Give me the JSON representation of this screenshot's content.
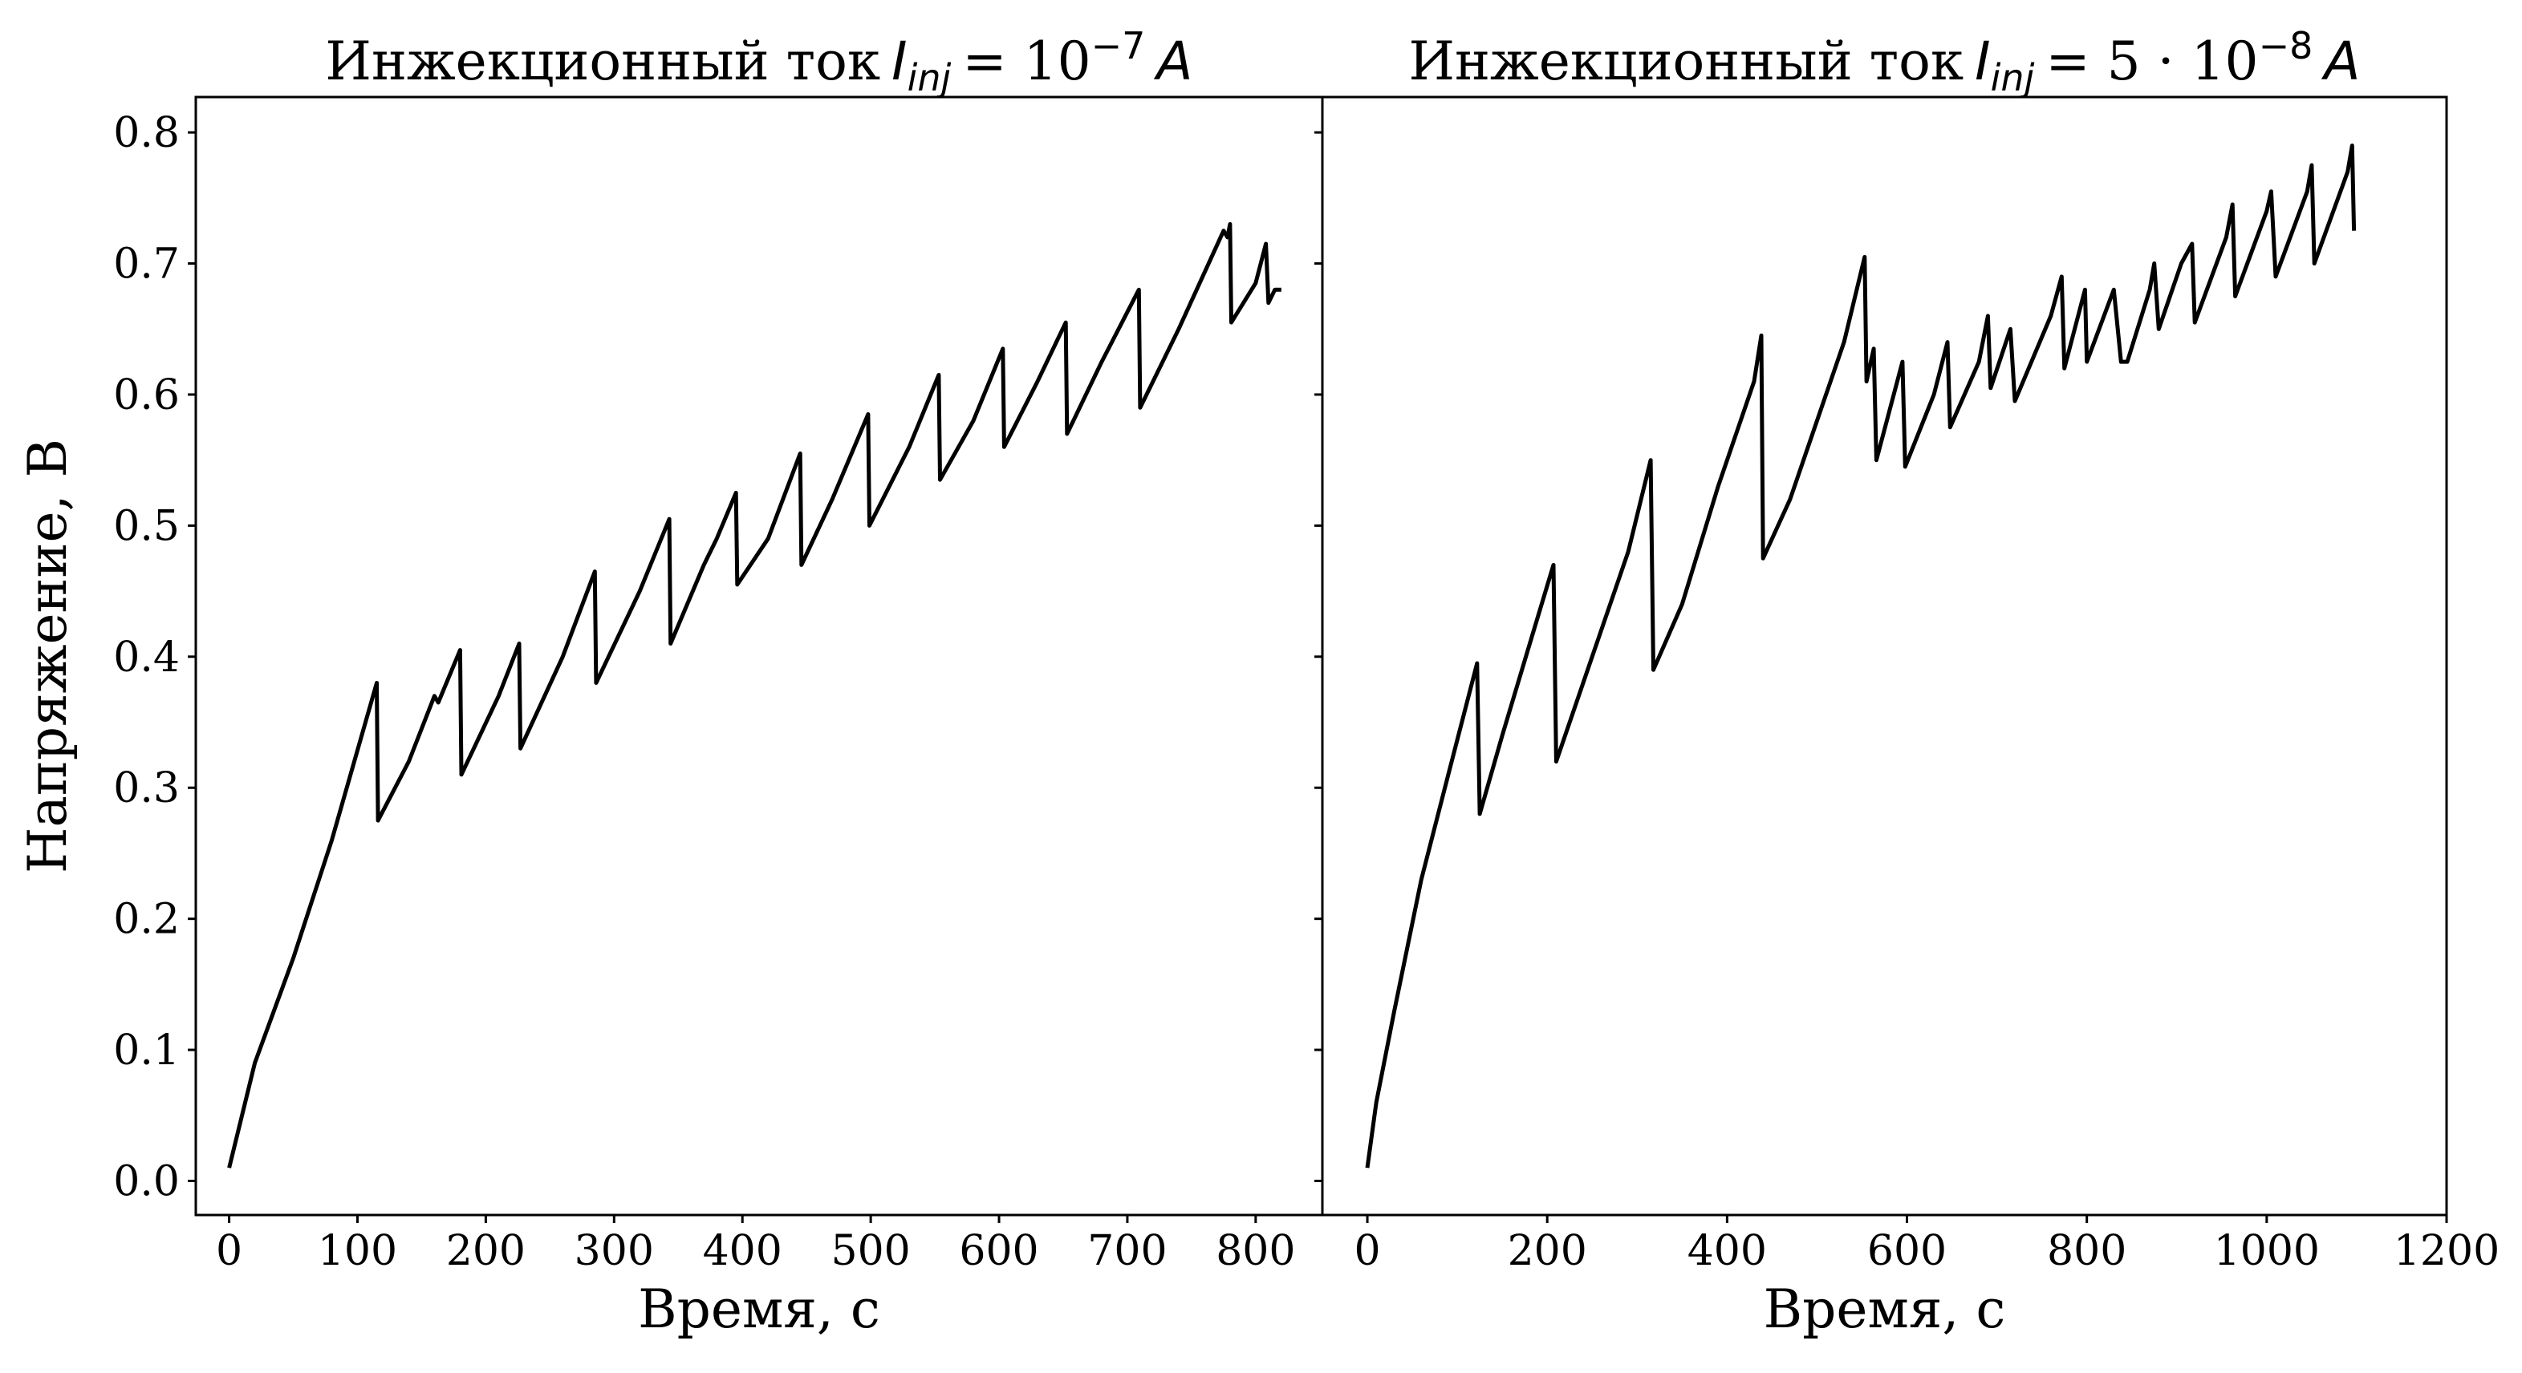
{
  "chart_data": [
    {
      "type": "line",
      "title_parts": [
        {
          "text": "Инжекционный ток"
        },
        {
          "text": "I",
          "style": "italic"
        },
        {
          "text": "inj",
          "style": "sub"
        },
        {
          "text": "= 10"
        },
        {
          "text": "−7",
          "style": "sup"
        },
        {
          "text": "A",
          "style": "italic"
        }
      ],
      "xlabel": "Время, с",
      "ylabel": "Напряжение, В",
      "xlim": [
        -26,
        852
      ],
      "ylim": [
        -0.026,
        0.827
      ],
      "xticks": [
        0,
        100,
        200,
        300,
        400,
        500,
        600,
        700,
        800
      ],
      "yticks": [
        {
          "value": 0,
          "label": "0.0"
        },
        0.1,
        0.2,
        0.3,
        0.4,
        0.5,
        0.6,
        0.7,
        0.8
      ],
      "show_ytick_labels": true,
      "series": [
        {
          "color": "#000000",
          "x": [
            0,
            20,
            50,
            80,
            115,
            116,
            140,
            160,
            163,
            180,
            181,
            210,
            226,
            227,
            260,
            285,
            286,
            320,
            343,
            344,
            370,
            380,
            395,
            396,
            420,
            445,
            446,
            470,
            498,
            499,
            530,
            553,
            554,
            580,
            603,
            604,
            630,
            652,
            653,
            680,
            709,
            710,
            740,
            775,
            778,
            780,
            781,
            800,
            808,
            810,
            815,
            820
          ],
          "values": [
            0.01,
            0.09,
            0.17,
            0.26,
            0.38,
            0.275,
            0.32,
            0.37,
            0.365,
            0.405,
            0.31,
            0.37,
            0.41,
            0.33,
            0.4,
            0.465,
            0.38,
            0.45,
            0.505,
            0.41,
            0.47,
            0.49,
            0.525,
            0.455,
            0.49,
            0.555,
            0.47,
            0.52,
            0.585,
            0.5,
            0.56,
            0.615,
            0.535,
            0.58,
            0.635,
            0.56,
            0.61,
            0.655,
            0.57,
            0.625,
            0.68,
            0.59,
            0.65,
            0.725,
            0.72,
            0.73,
            0.655,
            0.685,
            0.715,
            0.67,
            0.68,
            0.68
          ]
        }
      ]
    },
    {
      "type": "line",
      "title_parts": [
        {
          "text": "Инжекционный ток"
        },
        {
          "text": "I",
          "style": "italic"
        },
        {
          "text": "inj",
          "style": "sub"
        },
        {
          "text": "= 5 · 10"
        },
        {
          "text": "−8",
          "style": "sup"
        },
        {
          "text": "A",
          "style": "italic"
        }
      ],
      "xlabel": "Время, с",
      "xlim": [
        -50,
        1200
      ],
      "ylim": [
        -0.026,
        0.827
      ],
      "xticks": [
        0,
        200,
        400,
        600,
        800,
        1000,
        1200
      ],
      "yticks": [
        0,
        0.1,
        0.2,
        0.3,
        0.4,
        0.5,
        0.6,
        0.7,
        0.8
      ],
      "show_ytick_labels": false,
      "series": [
        {
          "color": "#000000",
          "x": [
            0,
            10,
            30,
            60,
            90,
            122,
            125,
            150,
            185,
            207,
            210,
            250,
            290,
            315,
            318,
            350,
            390,
            430,
            438,
            440,
            470,
            500,
            530,
            553,
            555,
            563,
            566,
            595,
            598,
            630,
            645,
            648,
            680,
            690,
            693,
            715,
            720,
            760,
            772,
            775,
            798,
            800,
            830,
            838,
            845,
            870,
            875,
            880,
            905,
            917,
            920,
            955,
            962,
            965,
            1000,
            1005,
            1010,
            1045,
            1050,
            1053,
            1090,
            1095,
            1097
          ],
          "values": [
            0.01,
            0.06,
            0.13,
            0.23,
            0.31,
            0.395,
            0.28,
            0.34,
            0.42,
            0.47,
            0.32,
            0.4,
            0.48,
            0.55,
            0.39,
            0.44,
            0.53,
            0.61,
            0.645,
            0.475,
            0.52,
            0.58,
            0.64,
            0.705,
            0.61,
            0.635,
            0.55,
            0.625,
            0.545,
            0.6,
            0.64,
            0.575,
            0.625,
            0.66,
            0.605,
            0.65,
            0.595,
            0.66,
            0.69,
            0.62,
            0.68,
            0.625,
            0.68,
            0.625,
            0.625,
            0.68,
            0.7,
            0.65,
            0.7,
            0.715,
            0.655,
            0.72,
            0.745,
            0.675,
            0.74,
            0.755,
            0.69,
            0.755,
            0.775,
            0.7,
            0.77,
            0.79,
            0.725
          ]
        }
      ]
    }
  ]
}
